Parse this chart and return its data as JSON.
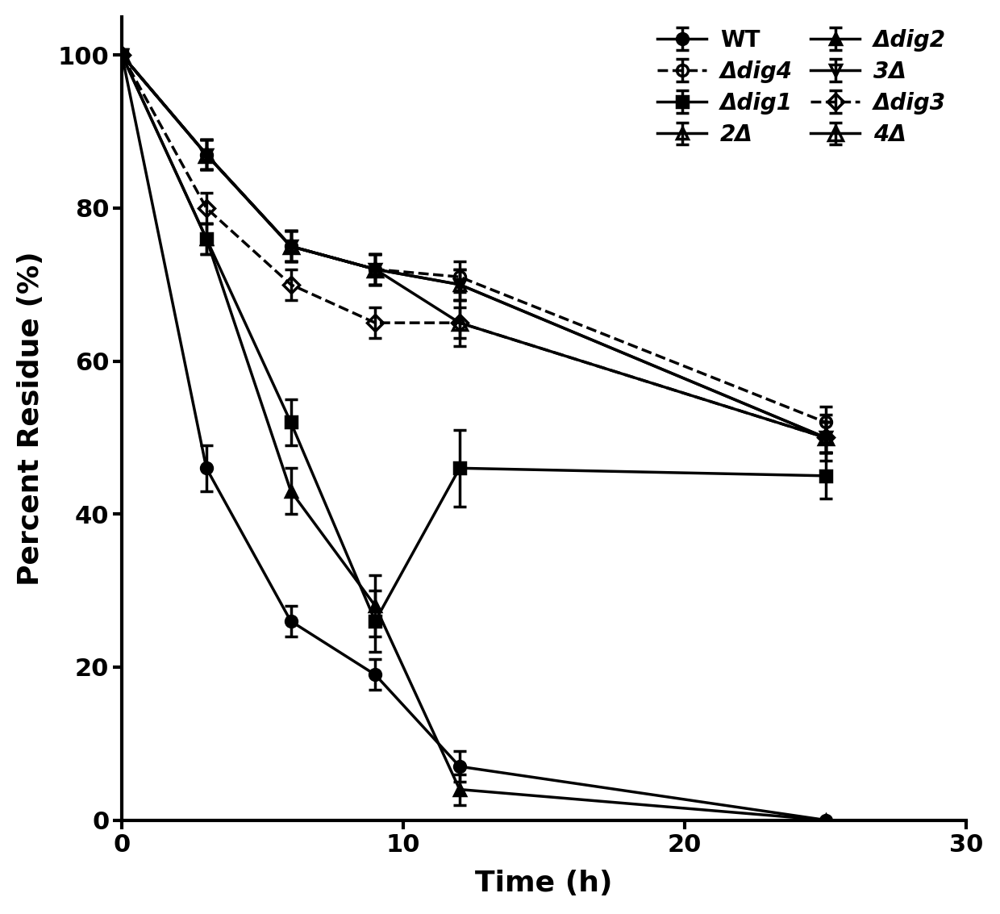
{
  "series": [
    {
      "label": "WT",
      "label_italic": false,
      "x": [
        0,
        3,
        6,
        9,
        12,
        25
      ],
      "y": [
        100,
        46,
        26,
        19,
        7,
        0
      ],
      "yerr": [
        0,
        3,
        2,
        2,
        2,
        0
      ],
      "marker": "o",
      "fillstyle": "full",
      "linestyle": "-",
      "color": "black",
      "markersize": 10,
      "zorder": 5
    },
    {
      "label": "Δdig1",
      "label_italic": true,
      "x": [
        0,
        3,
        6,
        9,
        12,
        25
      ],
      "y": [
        100,
        76,
        52,
        26,
        46,
        45
      ],
      "yerr": [
        0,
        2,
        3,
        4,
        5,
        3
      ],
      "marker": "s",
      "fillstyle": "full",
      "linestyle": "-",
      "color": "black",
      "markersize": 10,
      "zorder": 4
    },
    {
      "label": "Δdig2",
      "label_italic": true,
      "x": [
        0,
        3,
        6,
        9,
        12,
        25
      ],
      "y": [
        100,
        76,
        43,
        28,
        4,
        0
      ],
      "yerr": [
        0,
        2,
        3,
        4,
        2,
        0
      ],
      "marker": "^",
      "fillstyle": "full",
      "linestyle": "-",
      "color": "black",
      "markersize": 10,
      "zorder": 3
    },
    {
      "label": "Δdig3",
      "label_italic": true,
      "x": [
        0,
        3,
        6,
        9,
        12,
        25
      ],
      "y": [
        100,
        80,
        70,
        65,
        65,
        50
      ],
      "yerr": [
        0,
        2,
        2,
        2,
        3,
        3
      ],
      "marker": "D",
      "fillstyle": "none",
      "linestyle": "--",
      "color": "black",
      "markersize": 10,
      "zorder": 6
    },
    {
      "label": "Δdig4",
      "label_italic": true,
      "x": [
        0,
        3,
        6,
        9,
        12,
        25
      ],
      "y": [
        100,
        87,
        75,
        72,
        71,
        52
      ],
      "yerr": [
        0,
        2,
        2,
        2,
        2,
        2
      ],
      "marker": "o",
      "fillstyle": "none",
      "linestyle": "--",
      "color": "black",
      "markersize": 10,
      "zorder": 7
    },
    {
      "label": "2Δ",
      "label_italic": true,
      "x": [
        0,
        3,
        6,
        9,
        12,
        25
      ],
      "y": [
        100,
        87,
        75,
        72,
        70,
        50
      ],
      "yerr": [
        0,
        2,
        2,
        2,
        2,
        2
      ],
      "marker": "^",
      "fillstyle": "none",
      "linestyle": "-",
      "color": "black",
      "markersize": 10,
      "zorder": 8
    },
    {
      "label": "3Δ",
      "label_italic": true,
      "x": [
        0,
        3,
        6,
        9,
        12,
        25
      ],
      "y": [
        100,
        87,
        75,
        72,
        70,
        50
      ],
      "yerr": [
        0,
        2,
        2,
        2,
        2,
        2
      ],
      "marker": "v",
      "fillstyle": "none",
      "linestyle": "-",
      "color": "black",
      "markersize": 10,
      "zorder": 9
    },
    {
      "label": "4Δ",
      "label_italic": true,
      "x": [
        0,
        3,
        6,
        9,
        12,
        25
      ],
      "y": [
        100,
        87,
        75,
        72,
        65,
        50
      ],
      "yerr": [
        0,
        2,
        2,
        2,
        2,
        2
      ],
      "marker": "^",
      "fillstyle": "none",
      "linestyle": "-",
      "color": "black",
      "markersize": 13,
      "zorder": 10
    }
  ],
  "xlabel": "Time (h)",
  "ylabel": "Percent Residue (%)",
  "xlim": [
    0,
    30
  ],
  "ylim": [
    0,
    105
  ],
  "xticks": [
    0,
    10,
    20,
    30
  ],
  "yticks": [
    0,
    20,
    40,
    60,
    80,
    100
  ],
  "background_color": "white",
  "tick_fontsize": 22,
  "label_fontsize": 26,
  "legend_fontsize": 20
}
